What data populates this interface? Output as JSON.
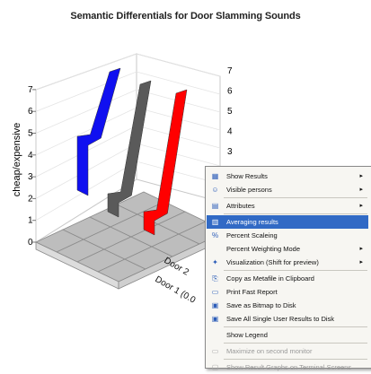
{
  "chart_title": "Semantic Differentials for Door Slamming Sounds",
  "chart_data": {
    "type": "bar",
    "title": "Semantic Differentials for Door Slamming Sounds",
    "ylabel": "cheap/expensive",
    "z_ticks": [
      "0",
      "1",
      "2",
      "3",
      "4",
      "5",
      "6",
      "7"
    ],
    "right_ticks": [
      "3",
      "4",
      "5",
      "6",
      "7"
    ],
    "depth_labels": [
      "Door 2",
      "Door 1 (0.0"
    ],
    "series": [
      {
        "name": "",
        "color": "#1010f0",
        "values": [
          3,
          6
        ]
      },
      {
        "name": "",
        "color": "#5a5a5a",
        "values": [
          1,
          6.5
        ]
      },
      {
        "name": "",
        "color": "#ff0000",
        "values": [
          1,
          7
        ]
      }
    ],
    "zlim": [
      0,
      7
    ]
  },
  "colors": {
    "highlight": "#316ac5",
    "menu_bg": "#f7f6f2"
  },
  "menu": {
    "items": [
      {
        "label": "Show Results",
        "icon": "results-icon",
        "submenu": true
      },
      {
        "label": "Visible persons",
        "icon": "persons-icon",
        "submenu": true
      },
      {
        "label": "Attributes",
        "icon": "attributes-icon",
        "submenu": true
      },
      {
        "label": "Averaging results",
        "icon": "averaging-icon",
        "submenu": false,
        "highlighted": true
      },
      {
        "label": "Percent Scaleing",
        "icon": "percent-icon",
        "submenu": false
      },
      {
        "label": "Percent Weighting Mode",
        "icon": "",
        "submenu": true
      },
      {
        "label": "Visualization (Shift for preview)",
        "icon": "visualization-icon",
        "submenu": true
      },
      {
        "label": "Copy as Metafile in Clipboard",
        "icon": "copy-icon",
        "submenu": false
      },
      {
        "label": "Print Fast Report",
        "icon": "print-icon",
        "submenu": false
      },
      {
        "label": "Save as Bitmap to Disk",
        "icon": "save-bitmap-icon",
        "submenu": false
      },
      {
        "label": "Save All Single User Results to Disk",
        "icon": "save-all-icon",
        "submenu": false
      },
      {
        "label": "Show Legend",
        "icon": "",
        "submenu": false
      },
      {
        "label": "Maximize on second monitor",
        "icon": "monitor-icon",
        "submenu": false,
        "disabled": true
      },
      {
        "label": "Show Result Graphs on Terminal Screens",
        "icon": "terminal-icon",
        "submenu": false,
        "disabled": true
      }
    ]
  }
}
